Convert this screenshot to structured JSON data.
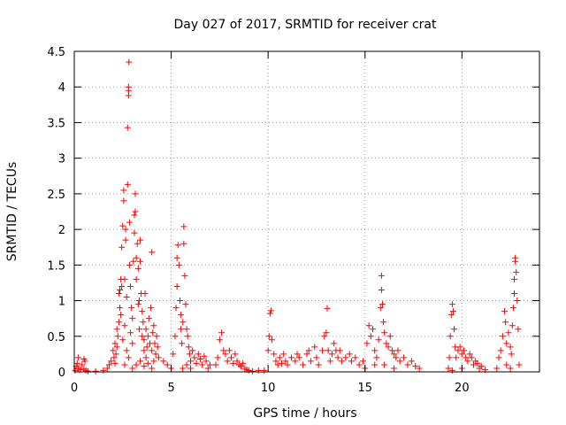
{
  "chart_data": {
    "type": "scatter",
    "title": "Day 027 of 2017, SRMTID for receiver crat",
    "xlabel": "GPS time / hours",
    "ylabel": "SRMTID / TECUs",
    "xlim": [
      0,
      24
    ],
    "ylim": [
      0,
      4.5
    ],
    "xticks": [
      0,
      5,
      10,
      15,
      20
    ],
    "xtick_labels": [
      "0",
      "5",
      "10",
      "15",
      "20"
    ],
    "yticks": [
      0,
      0.5,
      1,
      1.5,
      2,
      2.5,
      3,
      3.5,
      4,
      4.5
    ],
    "ytick_labels": [
      "0",
      "0.5",
      "1",
      "1.5",
      "2",
      "2.5",
      "3",
      "3.5",
      "4",
      "4.5"
    ],
    "grid": true,
    "marker": "+",
    "marker_color": "#ff0000",
    "series": [
      {
        "name": "SRMTID",
        "points": [
          [
            0.05,
            0.02
          ],
          [
            0.1,
            0.08
          ],
          [
            0.15,
            0.12
          ],
          [
            0.2,
            0.05
          ],
          [
            0.3,
            0.03
          ],
          [
            0.4,
            0.1
          ],
          [
            0.5,
            0.04
          ],
          [
            0.6,
            0.02
          ],
          [
            0.7,
            0.01
          ],
          [
            0.5,
            0.18
          ],
          [
            0.55,
            0.15
          ],
          [
            0.2,
            0.2
          ],
          [
            1.1,
            0.01
          ],
          [
            1.5,
            0.02
          ],
          [
            1.7,
            0.05
          ],
          [
            1.8,
            0.1
          ],
          [
            1.9,
            0.15
          ],
          [
            2.0,
            0.3
          ],
          [
            2.05,
            0.2
          ],
          [
            2.1,
            0.12
          ],
          [
            2.1,
            0.4
          ],
          [
            2.15,
            0.25
          ],
          [
            2.2,
            0.35
          ],
          [
            2.2,
            0.6
          ],
          [
            2.25,
            0.5
          ],
          [
            2.3,
            0.7
          ],
          [
            2.3,
            1.1
          ],
          [
            2.35,
            1.15
          ],
          [
            2.35,
            0.9
          ],
          [
            2.4,
            0.8
          ],
          [
            2.4,
            1.3
          ],
          [
            2.45,
            1.75
          ],
          [
            2.45,
            1.2
          ],
          [
            2.5,
            0.45
          ],
          [
            2.5,
            2.05
          ],
          [
            2.55,
            2.4
          ],
          [
            2.55,
            2.55
          ],
          [
            2.6,
            1.3
          ],
          [
            2.6,
            0.65
          ],
          [
            2.65,
            1.85
          ],
          [
            2.65,
            2.0
          ],
          [
            2.7,
            1.05
          ],
          [
            2.7,
            0.3
          ],
          [
            2.75,
            3.43
          ],
          [
            2.75,
            2.63
          ],
          [
            2.8,
            3.95
          ],
          [
            2.8,
            3.88
          ],
          [
            2.8,
            4.0
          ],
          [
            2.82,
            4.35
          ],
          [
            2.85,
            2.1
          ],
          [
            2.85,
            1.5
          ],
          [
            2.9,
            0.55
          ],
          [
            2.9,
            1.2
          ],
          [
            2.95,
            0.9
          ],
          [
            3.0,
            0.4
          ],
          [
            3.0,
            0.75
          ],
          [
            3.05,
            1.55
          ],
          [
            3.1,
            1.95
          ],
          [
            3.1,
            2.2
          ],
          [
            3.15,
            2.5
          ],
          [
            3.15,
            2.25
          ],
          [
            3.2,
            1.6
          ],
          [
            3.2,
            1.3
          ],
          [
            3.25,
            1.8
          ],
          [
            3.3,
            0.95
          ],
          [
            3.3,
            1.45
          ],
          [
            3.35,
            1.0
          ],
          [
            3.35,
            0.6
          ],
          [
            3.4,
            1.55
          ],
          [
            3.4,
            1.85
          ],
          [
            3.45,
            1.1
          ],
          [
            3.5,
            0.5
          ],
          [
            3.5,
            0.85
          ],
          [
            3.55,
            0.7
          ],
          [
            3.6,
            0.3
          ],
          [
            3.6,
            0.45
          ],
          [
            3.65,
            1.1
          ],
          [
            3.7,
            0.6
          ],
          [
            3.7,
            0.2
          ],
          [
            3.75,
            0.35
          ],
          [
            3.8,
            0.5
          ],
          [
            3.85,
            0.75
          ],
          [
            3.9,
            0.4
          ],
          [
            3.95,
            0.9
          ],
          [
            4.0,
            1.68
          ],
          [
            4.0,
            0.3
          ],
          [
            4.05,
            0.55
          ],
          [
            4.1,
            0.65
          ],
          [
            4.1,
            0.15
          ],
          [
            4.15,
            0.4
          ],
          [
            4.2,
            0.25
          ],
          [
            4.25,
            0.5
          ],
          [
            4.3,
            0.35
          ],
          [
            4.35,
            0.2
          ],
          [
            3.0,
            0.05
          ],
          [
            3.2,
            0.1
          ],
          [
            3.4,
            0.15
          ],
          [
            3.6,
            0.08
          ],
          [
            3.8,
            0.12
          ],
          [
            4.0,
            0.05
          ],
          [
            2.6,
            0.1
          ],
          [
            2.8,
            0.2
          ],
          [
            4.6,
            0.15
          ],
          [
            4.8,
            0.1
          ],
          [
            5.0,
            0.05
          ],
          [
            5.1,
            0.25
          ],
          [
            5.2,
            0.5
          ],
          [
            5.25,
            0.9
          ],
          [
            5.3,
            1.2
          ],
          [
            5.3,
            1.6
          ],
          [
            5.35,
            1.78
          ],
          [
            5.4,
            1.5
          ],
          [
            5.45,
            1.0
          ],
          [
            5.5,
            0.8
          ],
          [
            5.5,
            0.6
          ],
          [
            5.55,
            0.4
          ],
          [
            5.6,
            0.7
          ],
          [
            5.65,
            2.04
          ],
          [
            5.65,
            1.8
          ],
          [
            5.7,
            1.35
          ],
          [
            5.75,
            0.95
          ],
          [
            5.8,
            0.6
          ],
          [
            5.85,
            0.5
          ],
          [
            5.9,
            0.35
          ],
          [
            5.95,
            0.25
          ],
          [
            6.0,
            0.15
          ],
          [
            6.1,
            0.3
          ],
          [
            6.2,
            0.2
          ],
          [
            6.3,
            0.12
          ],
          [
            6.4,
            0.25
          ],
          [
            6.5,
            0.18
          ],
          [
            6.6,
            0.1
          ],
          [
            6.7,
            0.22
          ],
          [
            6.8,
            0.15
          ],
          [
            6.9,
            0.05
          ],
          [
            7.0,
            0.1
          ],
          [
            5.6,
            0.05
          ],
          [
            5.8,
            0.1
          ],
          [
            6.0,
            0.05
          ],
          [
            7.3,
            0.1
          ],
          [
            7.4,
            0.2
          ],
          [
            7.5,
            0.45
          ],
          [
            7.6,
            0.55
          ],
          [
            7.7,
            0.3
          ],
          [
            7.8,
            0.25
          ],
          [
            7.9,
            0.15
          ],
          [
            8.0,
            0.3
          ],
          [
            8.1,
            0.2
          ],
          [
            8.2,
            0.12
          ],
          [
            8.3,
            0.25
          ],
          [
            8.4,
            0.15
          ],
          [
            8.5,
            0.1
          ],
          [
            8.6,
            0.08
          ],
          [
            8.7,
            0.12
          ],
          [
            8.8,
            0.05
          ],
          [
            8.9,
            0.03
          ],
          [
            9.0,
            0.02
          ],
          [
            9.2,
            0.01
          ],
          [
            9.5,
            0.02
          ],
          [
            9.8,
            0.02
          ],
          [
            10.0,
            0.3
          ],
          [
            10.05,
            0.5
          ],
          [
            10.1,
            0.82
          ],
          [
            10.15,
            0.86
          ],
          [
            10.2,
            0.45
          ],
          [
            10.3,
            0.25
          ],
          [
            10.4,
            0.15
          ],
          [
            10.5,
            0.1
          ],
          [
            10.6,
            0.2
          ],
          [
            10.7,
            0.12
          ],
          [
            10.8,
            0.25
          ],
          [
            10.9,
            0.15
          ],
          [
            11.0,
            0.1
          ],
          [
            11.2,
            0.2
          ],
          [
            11.4,
            0.15
          ],
          [
            11.5,
            0.25
          ],
          [
            11.6,
            0.2
          ],
          [
            11.8,
            0.1
          ],
          [
            12.0,
            0.25
          ],
          [
            12.1,
            0.3
          ],
          [
            12.2,
            0.15
          ],
          [
            12.4,
            0.35
          ],
          [
            12.5,
            0.2
          ],
          [
            12.6,
            0.1
          ],
          [
            12.8,
            0.3
          ],
          [
            12.9,
            0.5
          ],
          [
            13.0,
            0.55
          ],
          [
            13.05,
            0.89
          ],
          [
            13.1,
            0.3
          ],
          [
            13.2,
            0.15
          ],
          [
            13.3,
            0.25
          ],
          [
            13.4,
            0.4
          ],
          [
            13.5,
            0.3
          ],
          [
            13.6,
            0.2
          ],
          [
            13.7,
            0.3
          ],
          [
            13.8,
            0.15
          ],
          [
            14.0,
            0.2
          ],
          [
            14.2,
            0.25
          ],
          [
            14.3,
            0.15
          ],
          [
            14.5,
            0.2
          ],
          [
            14.7,
            0.1
          ],
          [
            14.9,
            0.15
          ],
          [
            15.0,
            0.05
          ],
          [
            15.1,
            0.4
          ],
          [
            15.2,
            0.65
          ],
          [
            15.3,
            0.5
          ],
          [
            15.4,
            0.6
          ],
          [
            15.5,
            0.3
          ],
          [
            15.6,
            0.2
          ],
          [
            15.7,
            0.45
          ],
          [
            15.8,
            0.9
          ],
          [
            15.85,
            1.35
          ],
          [
            15.85,
            1.15
          ],
          [
            15.9,
            0.95
          ],
          [
            15.95,
            0.7
          ],
          [
            16.0,
            0.55
          ],
          [
            16.1,
            0.4
          ],
          [
            16.2,
            0.35
          ],
          [
            16.3,
            0.5
          ],
          [
            16.4,
            0.3
          ],
          [
            16.5,
            0.25
          ],
          [
            16.6,
            0.2
          ],
          [
            16.7,
            0.3
          ],
          [
            16.8,
            0.15
          ],
          [
            17.0,
            0.2
          ],
          [
            17.2,
            0.1
          ],
          [
            17.4,
            0.15
          ],
          [
            17.6,
            0.08
          ],
          [
            17.8,
            0.05
          ],
          [
            15.5,
            0.1
          ],
          [
            16.0,
            0.1
          ],
          [
            16.5,
            0.05
          ],
          [
            19.3,
            0.05
          ],
          [
            19.35,
            0.2
          ],
          [
            19.4,
            0.5
          ],
          [
            19.45,
            0.8
          ],
          [
            19.5,
            0.95
          ],
          [
            19.55,
            0.85
          ],
          [
            19.6,
            0.6
          ],
          [
            19.65,
            0.35
          ],
          [
            19.7,
            0.2
          ],
          [
            19.8,
            0.3
          ],
          [
            19.9,
            0.35
          ],
          [
            20.0,
            0.25
          ],
          [
            20.1,
            0.3
          ],
          [
            20.2,
            0.2
          ],
          [
            20.3,
            0.15
          ],
          [
            20.4,
            0.25
          ],
          [
            20.5,
            0.2
          ],
          [
            20.6,
            0.1
          ],
          [
            20.7,
            0.15
          ],
          [
            20.8,
            0.12
          ],
          [
            20.9,
            0.05
          ],
          [
            21.0,
            0.08
          ],
          [
            21.2,
            0.03
          ],
          [
            19.5,
            0.02
          ],
          [
            20.0,
            0.05
          ],
          [
            21.8,
            0.05
          ],
          [
            21.9,
            0.2
          ],
          [
            22.0,
            0.3
          ],
          [
            22.1,
            0.5
          ],
          [
            22.2,
            0.85
          ],
          [
            22.25,
            0.7
          ],
          [
            22.3,
            0.4
          ],
          [
            22.4,
            0.55
          ],
          [
            22.5,
            0.35
          ],
          [
            22.55,
            0.25
          ],
          [
            22.6,
            0.65
          ],
          [
            22.65,
            0.9
          ],
          [
            22.7,
            1.1
          ],
          [
            22.7,
            1.3
          ],
          [
            22.75,
            1.55
          ],
          [
            22.75,
            1.6
          ],
          [
            22.8,
            1.4
          ],
          [
            22.85,
            1.0
          ],
          [
            22.9,
            0.6
          ],
          [
            22.95,
            0.1
          ],
          [
            22.3,
            0.1
          ],
          [
            22.5,
            0.05
          ]
        ]
      }
    ]
  }
}
